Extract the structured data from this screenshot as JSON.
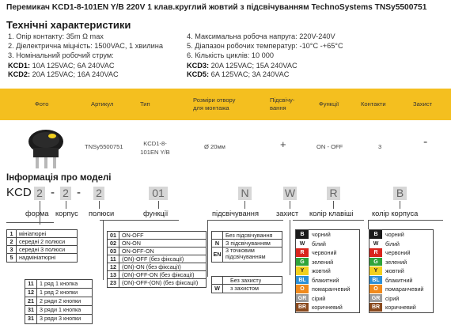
{
  "title": "Перемикач KCD1-8-101EN Y/B 220V 1 клав.круглий жовтий з підсвічуванням TechnoSystems TNSy5500751",
  "tech_heading": "Технічні характеристики",
  "specs_left": [
    "1. Опір контакту: 35m Ω  max",
    "2. Діелектрична міцність:  1500VAC, 1 хвилина",
    "3. Номінальний робочий струм:"
  ],
  "kcd1": {
    "k": "KCD1:",
    "v": " 10A 125VAC; 6A 240VAC"
  },
  "kcd2": {
    "k": "KCD2:",
    "v": " 20A 125VAC; 16A 240VAC"
  },
  "specs_right": [
    "4. Максимальна робоча напруга: 220V-240V",
    "5. Діапазон робочих температур: -10°C -+65°C",
    "6. Кількість циклів: 10 000"
  ],
  "kcd3": {
    "k": "KCD3:",
    "v": " 20A 125VAC; 15A 240VAC"
  },
  "kcd5": {
    "k": "KCD5:",
    "v": " 6A 125VAC; 3A 240VAC"
  },
  "table": {
    "headers": [
      "Фото",
      "Артикул",
      "Тип",
      "Розміри отвору для монтажа",
      "Підсвічу-вання",
      "Функції",
      "Контакти",
      "Захист"
    ],
    "row": [
      "TNSy5500751",
      "KCD1-8-101EN Y/B",
      "Ø 20мм",
      "+",
      "ON - OFF",
      "3",
      "-"
    ]
  },
  "info_heading": "Інформація про моделі",
  "code": {
    "prefix": "KCD",
    "s1": "2",
    "dash1": "-",
    "s2": "2",
    "dash2": "-",
    "s3": "2",
    "f": "01",
    "n": "N",
    "w": "W",
    "r": "R",
    "b": "B"
  },
  "labels": [
    "форма",
    "корпус",
    "полюси",
    "функції",
    "підсвічування",
    "захист",
    "колір клавіші",
    "колір корпуса"
  ],
  "forms": [
    [
      "1",
      "мініатюрні"
    ],
    [
      "2",
      "середні 2 полюси"
    ],
    [
      "3",
      "середні 3 полюси"
    ],
    [
      "5",
      "надмініатюрні"
    ]
  ],
  "poles": [
    [
      "11",
      "1 ряд 1 кнопка"
    ],
    [
      "12",
      "1 ряд 2 кнопки"
    ],
    [
      "21",
      "2 ряди 2 кнопки"
    ],
    [
      "31",
      "3 ряди 1 кнопка"
    ],
    [
      "31",
      "3 ряди 3 кнопки"
    ]
  ],
  "functions": [
    [
      "01",
      "ON-OFF"
    ],
    [
      "02",
      "ON-ON"
    ],
    [
      "03",
      "ON-OFF-ON"
    ],
    [
      "11",
      "(ON)-OFF (без фіксації)"
    ],
    [
      "12",
      "(ON)-ON (без фіксації)"
    ],
    [
      "13",
      "(ON)-OFF-ON (без фіксації)"
    ],
    [
      "23",
      "(ON)-OFF-(ON) (без фіксації)"
    ]
  ],
  "lights": [
    [
      "",
      "Без підсвічування"
    ],
    [
      "N",
      "З підсвічуванням"
    ],
    [
      "EN",
      "3 точковим підсвічуванням"
    ]
  ],
  "protect": [
    [
      "",
      "Без захисту"
    ],
    [
      "W",
      "з захистом"
    ]
  ],
  "key_colors": [
    {
      "k": "B",
      "v": "чорний",
      "c": "#1a1a1a"
    },
    {
      "k": "W",
      "v": "білий",
      "c": "#ffffff"
    },
    {
      "k": "R",
      "v": "червоний",
      "c": "#d9251d"
    },
    {
      "k": "G",
      "v": "зелений",
      "c": "#2fa43a"
    },
    {
      "k": "Y",
      "v": "жовтий",
      "c": "#f2d01e"
    },
    {
      "k": "BL",
      "v": "блакитний",
      "c": "#2c8fd6"
    },
    {
      "k": "O",
      "v": "помаранчевий",
      "c": "#f08a1d"
    },
    {
      "k": "GR",
      "v": "сірий",
      "c": "#9a9a9a"
    },
    {
      "k": "BR",
      "v": "коричневий",
      "c": "#8a4a1e"
    }
  ],
  "body_colors": [
    {
      "k": "B",
      "v": "чорний",
      "c": "#1a1a1a"
    },
    {
      "k": "W",
      "v": "білий",
      "c": "#ffffff"
    },
    {
      "k": "R",
      "v": "червоний",
      "c": "#d9251d"
    },
    {
      "k": "G",
      "v": "зелений",
      "c": "#2fa43a"
    },
    {
      "k": "Y",
      "v": "жовтий",
      "c": "#f2d01e"
    },
    {
      "k": "BL",
      "v": "блакитний",
      "c": "#2c8fd6"
    },
    {
      "k": "O",
      "v": "помаранчевий",
      "c": "#f08a1d"
    },
    {
      "k": "GR",
      "v": "сірий",
      "c": "#9a9a9a"
    },
    {
      "k": "BR",
      "v": "коричневий",
      "c": "#8a4a1e"
    }
  ],
  "accent": "#f4bf1f"
}
